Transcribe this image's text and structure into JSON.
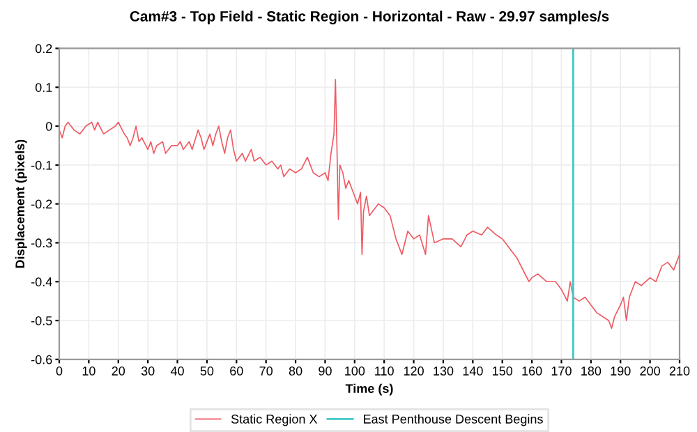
{
  "chart_data": {
    "type": "line",
    "title": "Cam#3 - Top Field - Static Region - Horizontal - Raw - 29.97 samples/s",
    "xlabel": "Time (s)",
    "ylabel": "Displacement (pixels)",
    "series": [
      {
        "name": "Static Region X",
        "color": "#f05a64",
        "x": [
          0,
          1,
          2,
          3,
          5,
          7,
          9,
          11,
          12,
          13,
          15,
          17,
          19,
          20,
          22,
          23,
          24,
          25,
          26,
          27,
          28,
          30,
          31,
          32,
          33,
          35,
          36,
          37,
          38,
          40,
          41,
          42,
          44,
          45,
          47,
          48,
          49,
          50,
          51,
          52,
          53,
          54,
          55,
          56,
          57,
          58,
          59,
          60,
          62,
          63,
          65,
          66,
          68,
          70,
          72,
          74,
          75,
          76,
          78,
          80,
          82,
          84,
          85,
          86,
          88,
          90,
          91,
          92,
          93,
          93.5,
          94,
          94.5,
          95,
          96,
          97,
          98,
          99,
          100,
          101,
          102,
          102.5,
          103,
          104,
          105,
          108,
          110,
          112,
          114,
          116,
          118,
          120,
          122,
          124,
          125,
          127,
          130,
          133,
          136,
          138,
          140,
          143,
          145,
          148,
          150,
          153,
          155,
          157,
          159,
          160,
          162,
          165,
          168,
          170,
          172,
          173,
          174,
          176,
          178,
          180,
          182,
          184,
          186,
          187,
          188,
          190,
          191,
          192,
          193,
          195,
          197,
          200,
          202,
          204,
          206,
          208,
          210
        ],
        "values": [
          -0.01,
          -0.03,
          0.0,
          0.01,
          -0.01,
          -0.02,
          0.0,
          0.01,
          -0.01,
          0.01,
          -0.02,
          -0.01,
          0.0,
          0.01,
          -0.02,
          -0.03,
          -0.05,
          -0.03,
          0.0,
          -0.04,
          -0.03,
          -0.06,
          -0.04,
          -0.07,
          -0.05,
          -0.04,
          -0.07,
          -0.06,
          -0.05,
          -0.05,
          -0.04,
          -0.06,
          -0.04,
          -0.06,
          -0.01,
          -0.03,
          -0.06,
          -0.04,
          -0.02,
          -0.05,
          -0.02,
          0.0,
          -0.04,
          -0.07,
          -0.03,
          -0.01,
          -0.06,
          -0.09,
          -0.07,
          -0.09,
          -0.06,
          -0.09,
          -0.08,
          -0.1,
          -0.09,
          -0.11,
          -0.1,
          -0.13,
          -0.11,
          -0.12,
          -0.11,
          -0.08,
          -0.1,
          -0.12,
          -0.13,
          -0.12,
          -0.14,
          -0.07,
          -0.02,
          0.12,
          -0.05,
          -0.24,
          -0.1,
          -0.12,
          -0.16,
          -0.14,
          -0.16,
          -0.18,
          -0.2,
          -0.17,
          -0.33,
          -0.22,
          -0.18,
          -0.23,
          -0.2,
          -0.21,
          -0.23,
          -0.29,
          -0.33,
          -0.27,
          -0.29,
          -0.28,
          -0.33,
          -0.23,
          -0.3,
          -0.29,
          -0.29,
          -0.31,
          -0.28,
          -0.27,
          -0.28,
          -0.26,
          -0.28,
          -0.29,
          -0.32,
          -0.34,
          -0.37,
          -0.4,
          -0.39,
          -0.38,
          -0.4,
          -0.4,
          -0.42,
          -0.45,
          -0.4,
          -0.44,
          -0.45,
          -0.44,
          -0.46,
          -0.48,
          -0.49,
          -0.5,
          -0.52,
          -0.49,
          -0.46,
          -0.44,
          -0.5,
          -0.44,
          -0.4,
          -0.41,
          -0.39,
          -0.4,
          -0.36,
          -0.35,
          -0.37,
          -0.33
        ]
      }
    ],
    "xlim": [
      0,
      210
    ],
    "xticks": [
      0,
      10,
      20,
      30,
      40,
      50,
      60,
      70,
      80,
      90,
      100,
      110,
      120,
      130,
      140,
      150,
      160,
      170,
      180,
      190,
      200,
      210
    ],
    "ylim": [
      -0.6,
      0.2
    ],
    "yticks": [
      -0.6,
      -0.5,
      -0.4,
      -0.3,
      -0.2,
      -0.1,
      0,
      0.1,
      0.2
    ],
    "ref_lines": [
      {
        "axis": "x",
        "value": 174,
        "label": "East Penthouse Descent Begins",
        "color": "#40c8c8"
      }
    ],
    "grid": true,
    "legend": "bottom",
    "marker": "none",
    "line_style": "solid"
  }
}
